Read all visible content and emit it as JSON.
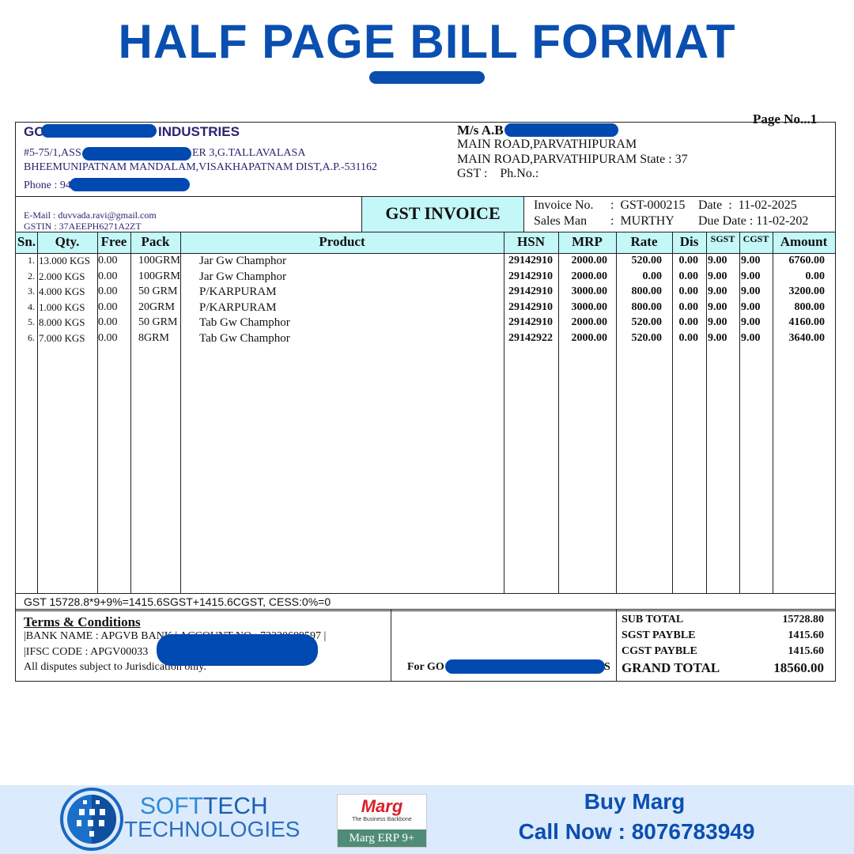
{
  "banner": {
    "title": "HALF PAGE BILL FORMAT"
  },
  "invoice": {
    "page_no": "Page No...1",
    "seller": {
      "name_start": "GO",
      "name_end": "INDUSTRIES",
      "address1_start": "#5-75/1,ASS",
      "address1_end": "ER 3,G.TALLAVALASA",
      "address2": "BHEEMUNIPATNAM MANDALAM,VISAKHAPATNAM DIST,A.P.-531162",
      "phone": "Phone : 94",
      "email": "E-Mail : duvvada.ravi@gmail.com",
      "gstin": "GSTIN : 37AEEPH6271A2ZT"
    },
    "buyer": {
      "name": "M/s A.B",
      "address1": "MAIN ROAD,PARVATHIPURAM",
      "address2": "MAIN ROAD,PARVATHIPURAM State : 37",
      "gst_phone": "GST :    Ph.No.:"
    },
    "doc_title": "GST INVOICE",
    "meta": {
      "invoice_label": "Invoice No.",
      "invoice_no": ":  GST-000215",
      "date": "Date  :  11-02-2025",
      "salesman_label": "Sales Man",
      "salesman": ":  MURTHY",
      "due_date": "Due Date : 11-02-202"
    },
    "columns": [
      "Sn.",
      "Qty.",
      "Free",
      "Pack",
      "Product",
      "HSN",
      "MRP",
      "Rate",
      "Dis",
      "SGST",
      "CGST",
      "Amount"
    ],
    "rows": [
      [
        "1.",
        "13.000 KGS",
        "0.00",
        "100GRM",
        "Jar Gw Champhor",
        "29142910",
        "2000.00",
        "520.00",
        "0.00",
        "9.00",
        "9.00",
        "6760.00"
      ],
      [
        "2.",
        "2.000 KGS",
        "0.00",
        "100GRM",
        "Jar Gw Champhor",
        "29142910",
        "2000.00",
        "0.00",
        "0.00",
        "9.00",
        "9.00",
        "0.00"
      ],
      [
        "3.",
        "4.000 KGS",
        "0.00",
        "50 GRM",
        "P/KARPURAM",
        "29142910",
        "3000.00",
        "800.00",
        "0.00",
        "9.00",
        "9.00",
        "3200.00"
      ],
      [
        "4.",
        "1.000 KGS",
        "0.00",
        "20GRM",
        "P/KARPURAM",
        "29142910",
        "3000.00",
        "800.00",
        "0.00",
        "9.00",
        "9.00",
        "800.00"
      ],
      [
        "5.",
        "8.000 KGS",
        "0.00",
        "50 GRM",
        "Tab Gw Champhor",
        "29142910",
        "2000.00",
        "520.00",
        "0.00",
        "9.00",
        "9.00",
        "4160.00"
      ],
      [
        "6.",
        "7.000 KGS",
        "0.00",
        "8GRM",
        "Tab Gw Champhor",
        "29142922",
        "2000.00",
        "520.00",
        "0.00",
        "9.00",
        "9.00",
        "3640.00"
      ]
    ],
    "gst_summary": "GST 15728.8*9+9%=1415.6SGST+1415.6CGST, CESS:0%=0",
    "terms": {
      "heading": "Terms & Conditions",
      "bank": "|BANK NAME : APGVB BANK | ACCOUNT NO : 73220689597 |",
      "ifsc": "|IFSC CODE : APGV00033",
      "disputes": "All disputes subject to  Jurisdication only."
    },
    "signature": {
      "for_start": "For GO",
      "for_end": "S"
    },
    "totals": [
      {
        "label": "SUB TOTAL",
        "value": "15728.80"
      },
      {
        "label": "SGST PAYBLE",
        "value": "1415.60"
      },
      {
        "label": "CGST PAYBLE",
        "value": "1415.60"
      },
      {
        "label": "GRAND TOTAL",
        "value": "18560.00"
      }
    ]
  },
  "footer": {
    "brand_line1_a": "SOFT",
    "brand_line1_b": "TECH",
    "brand_line2": "TECHNOLOGIES",
    "marg_logo": "Marg",
    "marg_tagline": "The Business Backbone",
    "marg_product": "Marg ERP 9+",
    "cta1": "Buy Marg",
    "cta2": "Call Now : 8076783949"
  },
  "colors": {
    "brand_blue": "#0a4fb0",
    "header_cyan": "#c4f7f7",
    "seller_navy": "#2a2370",
    "footer_bg": "#dbeafc"
  }
}
